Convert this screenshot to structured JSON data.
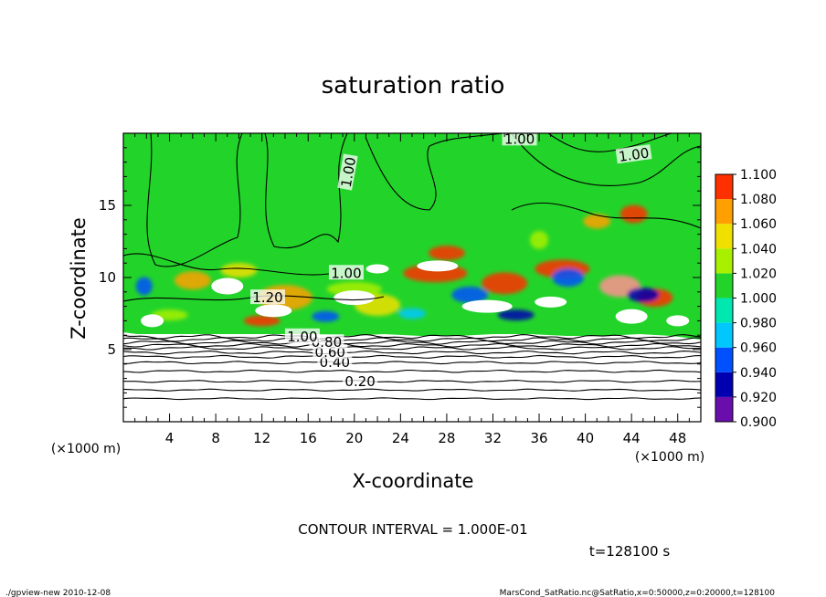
{
  "chart_data": {
    "type": "heatmap",
    "title": "saturation ratio",
    "xlabel": "X-coordinate",
    "ylabel": "Z-coordinate",
    "x_unit_left": "(×1000 m)",
    "x_unit_right": "(×1000 m)",
    "xlim": [
      0,
      50
    ],
    "ylim": [
      0,
      20
    ],
    "x_ticks": [
      4,
      8,
      12,
      16,
      20,
      24,
      28,
      32,
      36,
      40,
      44,
      48
    ],
    "y_ticks": [
      5,
      10,
      15
    ],
    "colorbar": {
      "levels": [
        0.9,
        0.92,
        0.94,
        0.96,
        0.98,
        1.0,
        1.02,
        1.04,
        1.06,
        1.08,
        1.1
      ],
      "labels": [
        "0.900",
        "0.920",
        "0.940",
        "0.960",
        "0.980",
        "1.000",
        "1.020",
        "1.040",
        "1.060",
        "1.080",
        "1.100"
      ],
      "colors": [
        "#6a0dad",
        "#0000b0",
        "#0050ff",
        "#00c8ff",
        "#00e8b0",
        "#22d42a",
        "#a8f000",
        "#f0e000",
        "#ffa000",
        "#ff3000",
        "#ff9090"
      ]
    },
    "contour_interval_text": "CONTOUR INTERVAL = 1.000E-01",
    "contour_labels": [
      {
        "text": "0.20",
        "x": 20.5,
        "z": 2.8
      },
      {
        "text": "0.40",
        "x": 18.3,
        "z": 4.1
      },
      {
        "text": "0.60",
        "x": 17.9,
        "z": 4.8
      },
      {
        "text": "0.80",
        "x": 17.6,
        "z": 5.5
      },
      {
        "text": "1.00",
        "x": 15.5,
        "z": 5.9
      },
      {
        "text": "1.20",
        "x": 12.5,
        "z": 8.6
      },
      {
        "text": "1.00",
        "x": 19.3,
        "z": 10.3
      },
      {
        "text": "1.00",
        "x": 19.5,
        "z": 17.3
      },
      {
        "text": "1.00",
        "x": 34.3,
        "z": 19.6
      },
      {
        "text": "1.00",
        "x": 44.2,
        "z": 18.5
      }
    ],
    "time_text": "t=128100 s"
  },
  "footer": {
    "left": "./gpview-new  2010-12-08",
    "right": "MarsCond_SatRatio.nc@SatRatio,x=0:50000,z=0:20000,t=128100"
  }
}
